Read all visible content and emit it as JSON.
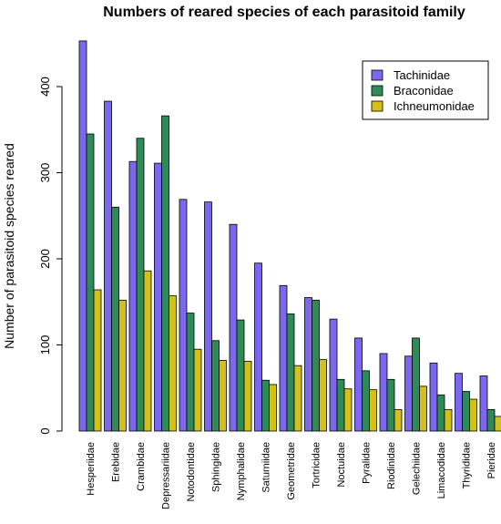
{
  "chart_data": {
    "type": "bar",
    "title": "Numbers of reared species of each parasitoid family",
    "xlabel": "",
    "ylabel": "Number of parasitoid species reared",
    "ylim": [
      0,
      450
    ],
    "yticks": [
      0,
      100,
      200,
      300,
      400
    ],
    "categories": [
      "Hesperiidae",
      "Erebidae",
      "Crambidae",
      "Depressariidae",
      "Notodontidae",
      "Sphingidae",
      "Nymphalidae",
      "Saturniidae",
      "Geometridae",
      "Tortricidae",
      "Noctuidae",
      "Pyralidae",
      "Riodinidae",
      "Gelechiidae",
      "Limacodidae",
      "Thyrididae",
      "Pieridae"
    ],
    "series": [
      {
        "name": "Tachinidae",
        "color": "#7B68EE",
        "values": [
          453,
          383,
          313,
          311,
          269,
          266,
          240,
          195,
          169,
          155,
          130,
          108,
          90,
          87,
          79,
          67,
          64
        ]
      },
      {
        "name": "Braconidae",
        "color": "#2E8B57",
        "values": [
          345,
          260,
          340,
          366,
          137,
          105,
          129,
          59,
          136,
          152,
          60,
          70,
          60,
          108,
          42,
          46,
          25
        ]
      },
      {
        "name": "Ichneumonidae",
        "color": "#D4C01A",
        "values": [
          164,
          152,
          186,
          157,
          95,
          82,
          81,
          54,
          76,
          83,
          49,
          48,
          25,
          52,
          25,
          37,
          17
        ]
      }
    ],
    "legend_position": "top-right",
    "grid": false
  }
}
